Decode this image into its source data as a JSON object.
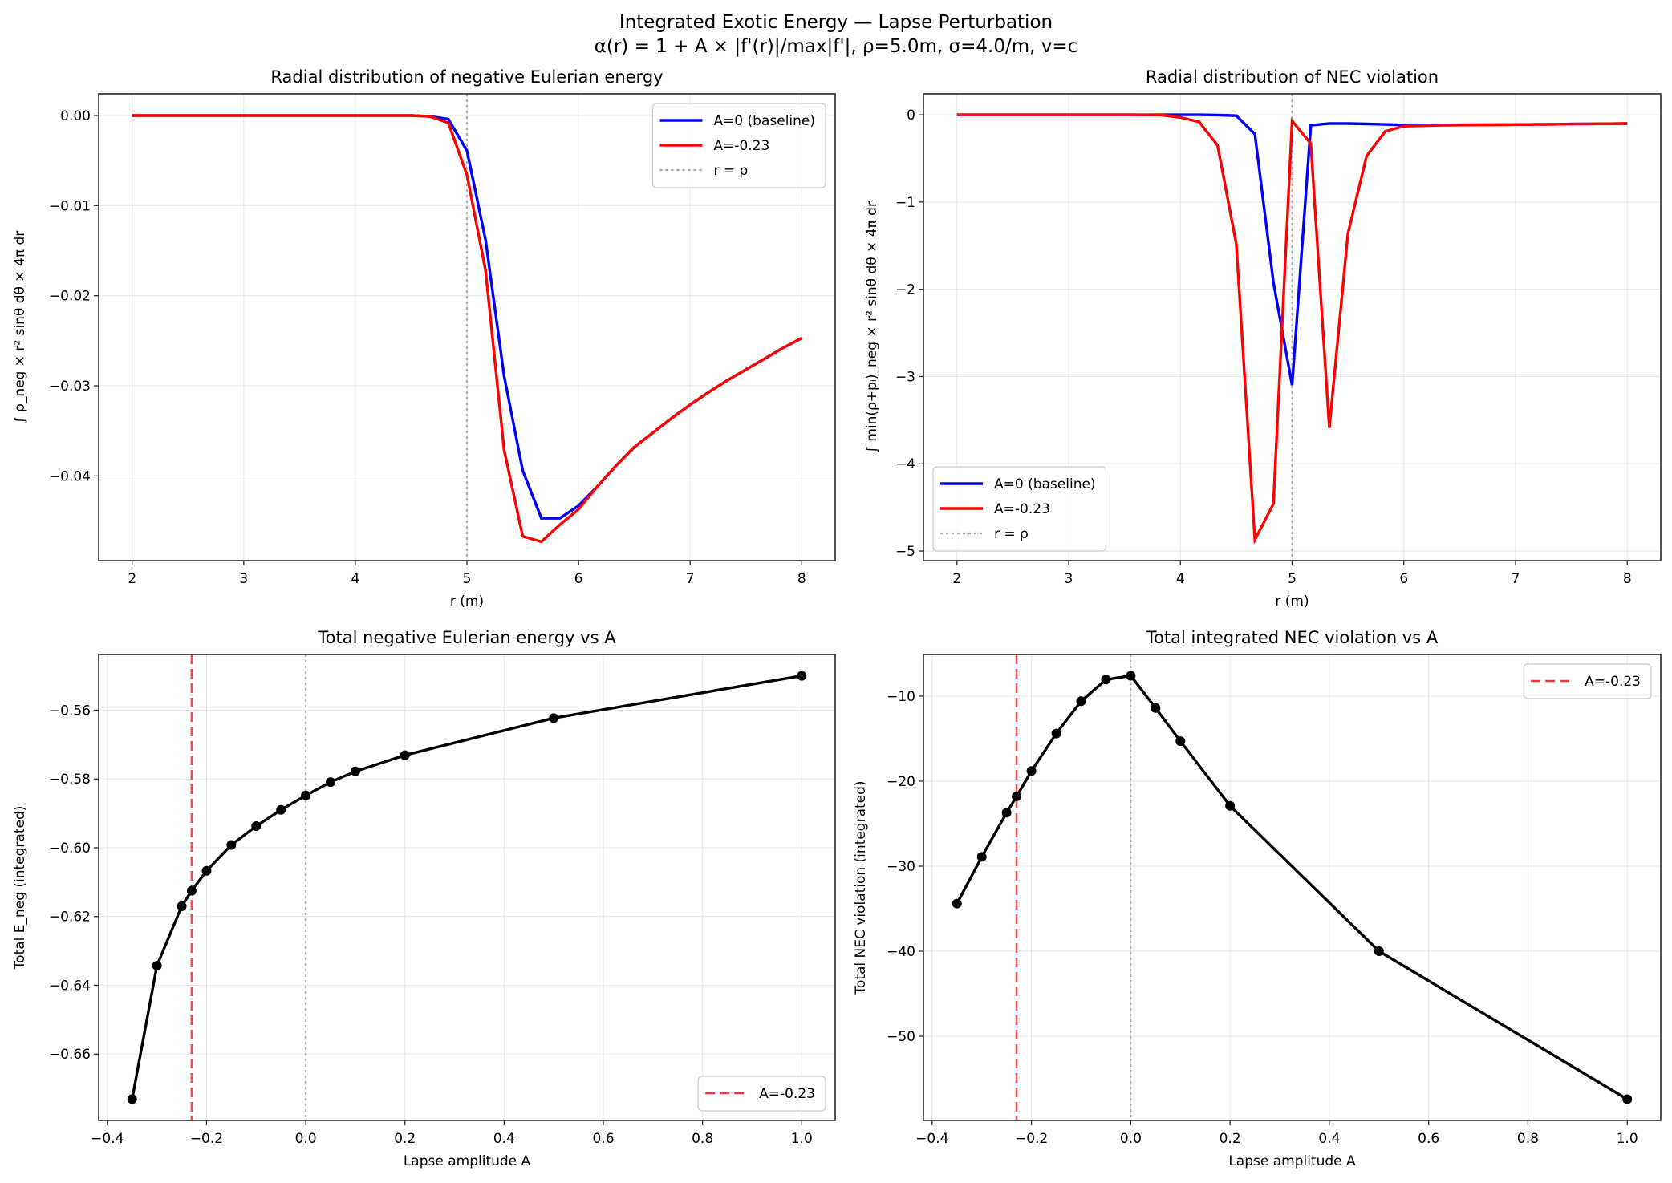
{
  "figure": {
    "title_line1": "Integrated Exotic Energy — Lapse Perturbation",
    "title_line2": "α(r) = 1 + A × |f'(r)|/max|f'|, ρ=5.0m, σ=4.0/m, v=c"
  },
  "chart_data": [
    {
      "type": "line",
      "title": "Radial distribution of negative Eulerian energy",
      "xlabel": "r (m)",
      "ylabel": "∫ ρ_neg × r² sinθ dθ × 4π dr",
      "xlim": [
        1.7,
        8.3
      ],
      "ylim": [
        -0.0494,
        0.0024
      ],
      "grid": true,
      "legend": "top-right",
      "xticks": [
        {
          "v": 2,
          "label": "2"
        },
        {
          "v": 3,
          "label": "3"
        },
        {
          "v": 4,
          "label": "4"
        },
        {
          "v": 5,
          "label": "5"
        },
        {
          "v": 6,
          "label": "6"
        },
        {
          "v": 7,
          "label": "7"
        },
        {
          "v": 8,
          "label": "8"
        }
      ],
      "yticks": [
        {
          "v": 0,
          "label": "0.00"
        },
        {
          "v": -0.01,
          "label": "−0.01"
        },
        {
          "v": -0.02,
          "label": "−0.02"
        },
        {
          "v": -0.03,
          "label": "−0.03"
        },
        {
          "v": -0.04,
          "label": "−0.04"
        }
      ],
      "x": [
        2.0,
        2.167,
        2.333,
        2.5,
        2.667,
        2.833,
        3.0,
        3.167,
        3.333,
        3.5,
        3.667,
        3.833,
        4.0,
        4.167,
        4.333,
        4.5,
        4.667,
        4.833,
        5.0,
        5.167,
        5.333,
        5.5,
        5.667,
        5.833,
        6.0,
        6.167,
        6.333,
        6.5,
        6.667,
        6.833,
        7.0,
        7.167,
        7.333,
        7.5,
        7.667,
        7.833,
        8.0
      ],
      "series": [
        {
          "name": "A=0 (baseline)",
          "color": "#0000ff",
          "style": "solid",
          "values": [
            0,
            0,
            0,
            0,
            0,
            0,
            0,
            0,
            0,
            0,
            0,
            0,
            0,
            0,
            0,
            0,
            -0.0001,
            -0.0004,
            -0.0039,
            -0.0138,
            -0.0289,
            -0.0394,
            -0.0447,
            -0.0447,
            -0.0433,
            -0.0412,
            -0.0389,
            -0.0368,
            -0.0352,
            -0.0336,
            -0.0321,
            -0.0307,
            -0.0294,
            -0.0282,
            -0.027,
            -0.0258,
            -0.0247
          ]
        },
        {
          "name": "A=-0.23",
          "color": "#ff0000",
          "style": "solid",
          "values": [
            0,
            0,
            0,
            0,
            0,
            0,
            0,
            0,
            0,
            0,
            0,
            0,
            0,
            0,
            0,
            0,
            -0.0001,
            -0.0008,
            -0.0066,
            -0.0172,
            -0.0371,
            -0.0467,
            -0.0473,
            -0.0454,
            -0.0437,
            -0.0412,
            -0.0389,
            -0.0368,
            -0.0352,
            -0.0336,
            -0.0321,
            -0.0307,
            -0.0294,
            -0.0282,
            -0.027,
            -0.0258,
            -0.0247
          ]
        }
      ],
      "vlines": [
        {
          "x": 5,
          "name": "r = ρ",
          "color": "#a0a0a0",
          "style": "dotted",
          "in_legend": true
        }
      ]
    },
    {
      "type": "line",
      "title": "Radial distribution of NEC violation",
      "xlabel": "r (m)",
      "ylabel": "∫ min(ρ+pᵢ)_neg × r² sinθ dθ × 4π dr",
      "xlim": [
        1.7,
        8.3
      ],
      "ylim": [
        -5.11,
        0.24
      ],
      "grid": true,
      "legend": "bottom-left",
      "xticks": [
        {
          "v": 2,
          "label": "2"
        },
        {
          "v": 3,
          "label": "3"
        },
        {
          "v": 4,
          "label": "4"
        },
        {
          "v": 5,
          "label": "5"
        },
        {
          "v": 6,
          "label": "6"
        },
        {
          "v": 7,
          "label": "7"
        },
        {
          "v": 8,
          "label": "8"
        }
      ],
      "yticks": [
        {
          "v": 0,
          "label": "0"
        },
        {
          "v": -1,
          "label": "−1"
        },
        {
          "v": -2,
          "label": "−2"
        },
        {
          "v": -3,
          "label": "−3"
        },
        {
          "v": -4,
          "label": "−4"
        },
        {
          "v": -5,
          "label": "−5"
        }
      ],
      "x": [
        2.0,
        2.167,
        2.333,
        2.5,
        2.667,
        2.833,
        3.0,
        3.167,
        3.333,
        3.5,
        3.667,
        3.833,
        4.0,
        4.167,
        4.333,
        4.5,
        4.667,
        4.833,
        5.0,
        5.167,
        5.333,
        5.5,
        5.667,
        5.833,
        6.0,
        6.167,
        6.333,
        6.5,
        6.667,
        6.833,
        7.0,
        7.167,
        7.333,
        7.5,
        7.667,
        7.833,
        8.0
      ],
      "series": [
        {
          "name": "A=0 (baseline)",
          "color": "#0000ff",
          "style": "solid",
          "values": [
            0,
            0,
            0,
            0,
            0,
            0,
            0,
            0,
            0,
            0,
            0,
            0,
            0,
            0,
            -0.003,
            -0.01,
            -0.22,
            -1.92,
            -3.1,
            -0.12,
            -0.1,
            -0.1,
            -0.105,
            -0.11,
            -0.117,
            -0.117,
            -0.116,
            -0.115,
            -0.114,
            -0.113,
            -0.112,
            -0.11,
            -0.108,
            -0.106,
            -0.104,
            -0.102,
            -0.1
          ]
        },
        {
          "name": "A=-0.23",
          "color": "#ff0000",
          "style": "solid",
          "values": [
            0,
            0,
            0,
            0,
            0,
            0,
            0,
            0,
            0,
            0,
            -0.001,
            -0.003,
            -0.03,
            -0.08,
            -0.35,
            -1.48,
            -4.87,
            -4.46,
            -0.07,
            -0.33,
            -3.59,
            -1.36,
            -0.47,
            -0.19,
            -0.13,
            -0.125,
            -0.12,
            -0.118,
            -0.116,
            -0.114,
            -0.112,
            -0.11,
            -0.108,
            -0.106,
            -0.104,
            -0.102,
            -0.1
          ]
        }
      ],
      "vlines": [
        {
          "x": 5,
          "name": "r = ρ",
          "color": "#a0a0a0",
          "style": "dotted",
          "in_legend": true
        }
      ]
    },
    {
      "type": "line",
      "title": "Total negative Eulerian energy vs A",
      "xlabel": "Lapse amplitude A",
      "ylabel": "Total E_neg (integrated)",
      "xlim": [
        -0.4175,
        1.0675
      ],
      "ylim": [
        -0.6793,
        -0.5438
      ],
      "grid": true,
      "legend": "bottom-right",
      "xticks": [
        {
          "v": -0.4,
          "label": "−0.4"
        },
        {
          "v": -0.2,
          "label": "−0.2"
        },
        {
          "v": 0,
          "label": "0.0"
        },
        {
          "v": 0.2,
          "label": "0.2"
        },
        {
          "v": 0.4,
          "label": "0.4"
        },
        {
          "v": 0.6,
          "label": "0.6"
        },
        {
          "v": 0.8,
          "label": "0.8"
        },
        {
          "v": 1.0,
          "label": "1.0"
        }
      ],
      "yticks": [
        {
          "v": -0.56,
          "label": "−0.56"
        },
        {
          "v": -0.58,
          "label": "−0.58"
        },
        {
          "v": -0.6,
          "label": "−0.60"
        },
        {
          "v": -0.62,
          "label": "−0.62"
        },
        {
          "v": -0.64,
          "label": "−0.64"
        },
        {
          "v": -0.66,
          "label": "−0.66"
        }
      ],
      "x": [
        -0.35,
        -0.3,
        -0.25,
        -0.23,
        -0.2,
        -0.15,
        -0.1,
        -0.05,
        0,
        0.05,
        0.1,
        0.2,
        0.5,
        1.0
      ],
      "series": [
        {
          "color": "#000000",
          "style": "solid",
          "marker": "circle",
          "values": [
            -0.6731,
            -0.6343,
            -0.617,
            -0.6125,
            -0.6067,
            -0.5992,
            -0.5937,
            -0.589,
            -0.5848,
            -0.5809,
            -0.5778,
            -0.5731,
            -0.5623,
            -0.55
          ]
        }
      ],
      "vlines": [
        {
          "x": -0.23,
          "name": "A=-0.23",
          "color": "#e8383d",
          "style": "dashed",
          "in_legend": true
        },
        {
          "x": 0,
          "color": "#a0a0a0",
          "style": "dotted",
          "in_legend": false
        }
      ]
    },
    {
      "type": "line",
      "title": "Total integrated NEC violation vs A",
      "xlabel": "Lapse amplitude A",
      "ylabel": "Total NEC violation (integrated)",
      "xlim": [
        -0.4175,
        1.0675
      ],
      "ylim": [
        -59.9,
        -5.1
      ],
      "grid": true,
      "legend": "top-right",
      "xticks": [
        {
          "v": -0.4,
          "label": "−0.4"
        },
        {
          "v": -0.2,
          "label": "−0.2"
        },
        {
          "v": 0,
          "label": "0.0"
        },
        {
          "v": 0.2,
          "label": "0.2"
        },
        {
          "v": 0.4,
          "label": "0.4"
        },
        {
          "v": 0.6,
          "label": "0.6"
        },
        {
          "v": 0.8,
          "label": "0.8"
        },
        {
          "v": 1.0,
          "label": "1.0"
        }
      ],
      "yticks": [
        {
          "v": -10,
          "label": "−10"
        },
        {
          "v": -20,
          "label": "−20"
        },
        {
          "v": -30,
          "label": "−30"
        },
        {
          "v": -40,
          "label": "−40"
        },
        {
          "v": -50,
          "label": "−50"
        }
      ],
      "x": [
        -0.35,
        -0.3,
        -0.25,
        -0.23,
        -0.2,
        -0.15,
        -0.1,
        -0.05,
        0,
        0.05,
        0.1,
        0.2,
        0.5,
        1.0
      ],
      "series": [
        {
          "color": "#000000",
          "style": "solid",
          "marker": "circle",
          "values": [
            -34.4,
            -28.9,
            -23.7,
            -21.8,
            -18.8,
            -14.4,
            -10.6,
            -8.05,
            -7.6,
            -11.4,
            -15.3,
            -22.9,
            -40.0,
            -57.4
          ]
        }
      ],
      "vlines": [
        {
          "x": -0.23,
          "name": "A=-0.23",
          "color": "#e8383d",
          "style": "dashed",
          "in_legend": true
        },
        {
          "x": 0,
          "color": "#a0a0a0",
          "style": "dotted",
          "in_legend": false
        }
      ]
    }
  ]
}
